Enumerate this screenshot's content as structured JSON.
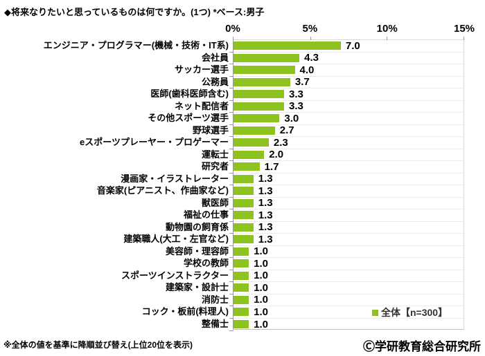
{
  "title": "◆将来なりたいと思っているものは何ですか。(1つ) *ベース:男子",
  "footnote": "※全体の値を基準に降順並び替え(上位20位を表示)",
  "copyright": "Ⓒ学研教育総合研究所",
  "legend": {
    "label": "全体【n=300】"
  },
  "colors": {
    "bar": "#8DC21F",
    "axis_line": "#9a9a9a",
    "gridline": "#ebebeb",
    "text": "#000000"
  },
  "chart_data": {
    "type": "bar",
    "orientation": "horizontal",
    "title": "将来なりたいと思っているものは何ですか。(1つ) *ベース:男子",
    "xlim": [
      0,
      15
    ],
    "x_tick_labels": [
      "0%",
      "5%",
      "10%",
      "15%"
    ],
    "grid": "row-separators-only",
    "legend_position": "inside-bottom-right",
    "series_name": "全体【n=300】",
    "categories": [
      "エンジニア・プログラマー(機械・技術・IT系)",
      "会社員",
      "サッカー選手",
      "公務員",
      "医師(歯科医師含む)",
      "ネット配信者",
      "その他スポーツ選手",
      "野球選手",
      "eスポーツプレーヤー・プロゲーマー",
      "運転士",
      "研究者",
      "漫画家・イラストレーター",
      "音楽家(ピアニスト、作曲家など)",
      "獣医師",
      "福祉の仕事",
      "動物園の飼育係",
      "建築職人(大工・左官など)",
      "美容師・理容師",
      "学校の教師",
      "スポーツインストラクター",
      "建築家・設計士",
      "消防士",
      "コック・板前(料理人)",
      "整備士"
    ],
    "values": [
      7.0,
      4.3,
      4.0,
      3.7,
      3.3,
      3.3,
      3.0,
      2.7,
      2.3,
      2.0,
      1.7,
      1.3,
      1.3,
      1.3,
      1.3,
      1.3,
      1.3,
      1.0,
      1.0,
      1.0,
      1.0,
      1.0,
      1.0,
      1.0
    ]
  }
}
